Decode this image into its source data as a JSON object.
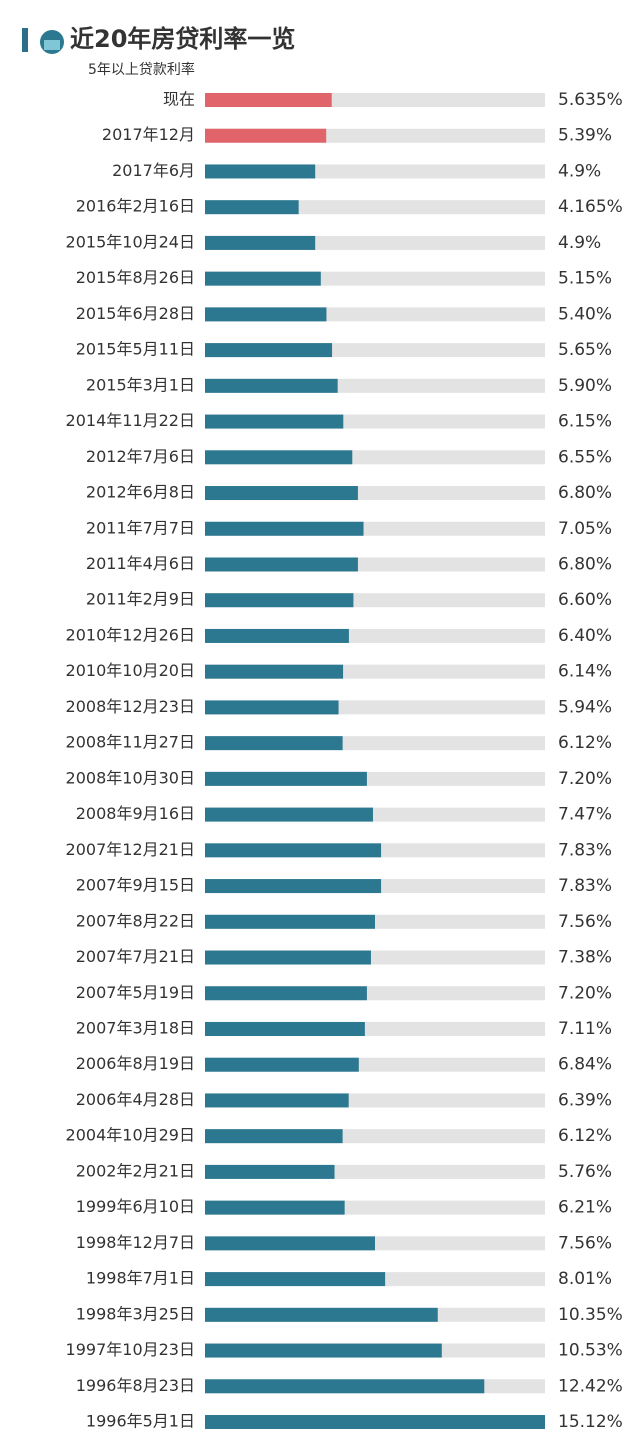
{
  "chart_data": {
    "type": "bar",
    "orientation": "horizontal",
    "title": "近20年房贷利率一览",
    "subtitle": "5年以上贷款利率",
    "categories": [
      "现在",
      "2017年12月",
      "2017年6月",
      "2016年2月16日",
      "2015年10月24日",
      "2015年8月26日",
      "2015年6月28日",
      "2015年5月11日",
      "2015年3月1日",
      "2014年11月22日",
      "2012年7月6日",
      "2012年6月8日",
      "2011年7月7日",
      "2011年4月6日",
      "2011年2月9日",
      "2010年12月26日",
      "2010年10月20日",
      "2008年12月23日",
      "2008年11月27日",
      "2008年10月30日",
      "2008年9月16日",
      "2007年12月21日",
      "2007年9月15日",
      "2007年8月22日",
      "2007年7月21日",
      "2007年5月19日",
      "2007年3月18日",
      "2006年8月19日",
      "2006年4月28日",
      "2004年10月29日",
      "2002年2月21日",
      "1999年6月10日",
      "1998年12月7日",
      "1998年7月1日",
      "1998年3月25日",
      "1997年10月23日",
      "1996年8月23日",
      "1996年5月1日"
    ],
    "values": [
      5.635,
      5.39,
      4.9,
      4.165,
      4.9,
      5.15,
      5.4,
      5.65,
      5.9,
      6.15,
      6.55,
      6.8,
      7.05,
      6.8,
      6.6,
      6.4,
      6.14,
      5.94,
      6.12,
      7.2,
      7.47,
      7.83,
      7.83,
      7.56,
      7.38,
      7.2,
      7.11,
      6.84,
      6.39,
      6.12,
      5.76,
      6.21,
      7.56,
      8.01,
      10.35,
      10.53,
      12.42,
      15.12
    ],
    "value_labels": [
      "5.635%",
      "5.39%",
      "4.9%",
      "4.165%",
      "4.9%",
      "5.15%",
      "5.40%",
      "5.65%",
      "5.90%",
      "6.15%",
      "6.55%",
      "6.80%",
      "7.05%",
      "6.80%",
      "6.60%",
      "6.40%",
      "6.14%",
      "5.94%",
      "6.12%",
      "7.20%",
      "7.47%",
      "7.83%",
      "7.83%",
      "7.56%",
      "7.38%",
      "7.20%",
      "7.11%",
      "6.84%",
      "6.39%",
      "6.12%",
      "5.76%",
      "6.21%",
      "7.56%",
      "8.01%",
      "10.35%",
      "10.53%",
      "12.42%",
      "15.12%"
    ],
    "colors": [
      "#e0646a",
      "#e0646a",
      "#2c7891",
      "#2c7891",
      "#2c7891",
      "#2c7891",
      "#2c7891",
      "#2c7891",
      "#2c7891",
      "#2c7891",
      "#2c7891",
      "#2c7891",
      "#2c7891",
      "#2c7891",
      "#2c7891",
      "#2c7891",
      "#2c7891",
      "#2c7891",
      "#2c7891",
      "#2c7891",
      "#2c7891",
      "#2c7891",
      "#2c7891",
      "#2c7891",
      "#2c7891",
      "#2c7891",
      "#2c7891",
      "#2c7891",
      "#2c7891",
      "#2c7891",
      "#2c7891",
      "#2c7891",
      "#2c7891",
      "#2c7891",
      "#2c7891",
      "#2c7891",
      "#2c7891",
      "#2c7891"
    ]
  }
}
